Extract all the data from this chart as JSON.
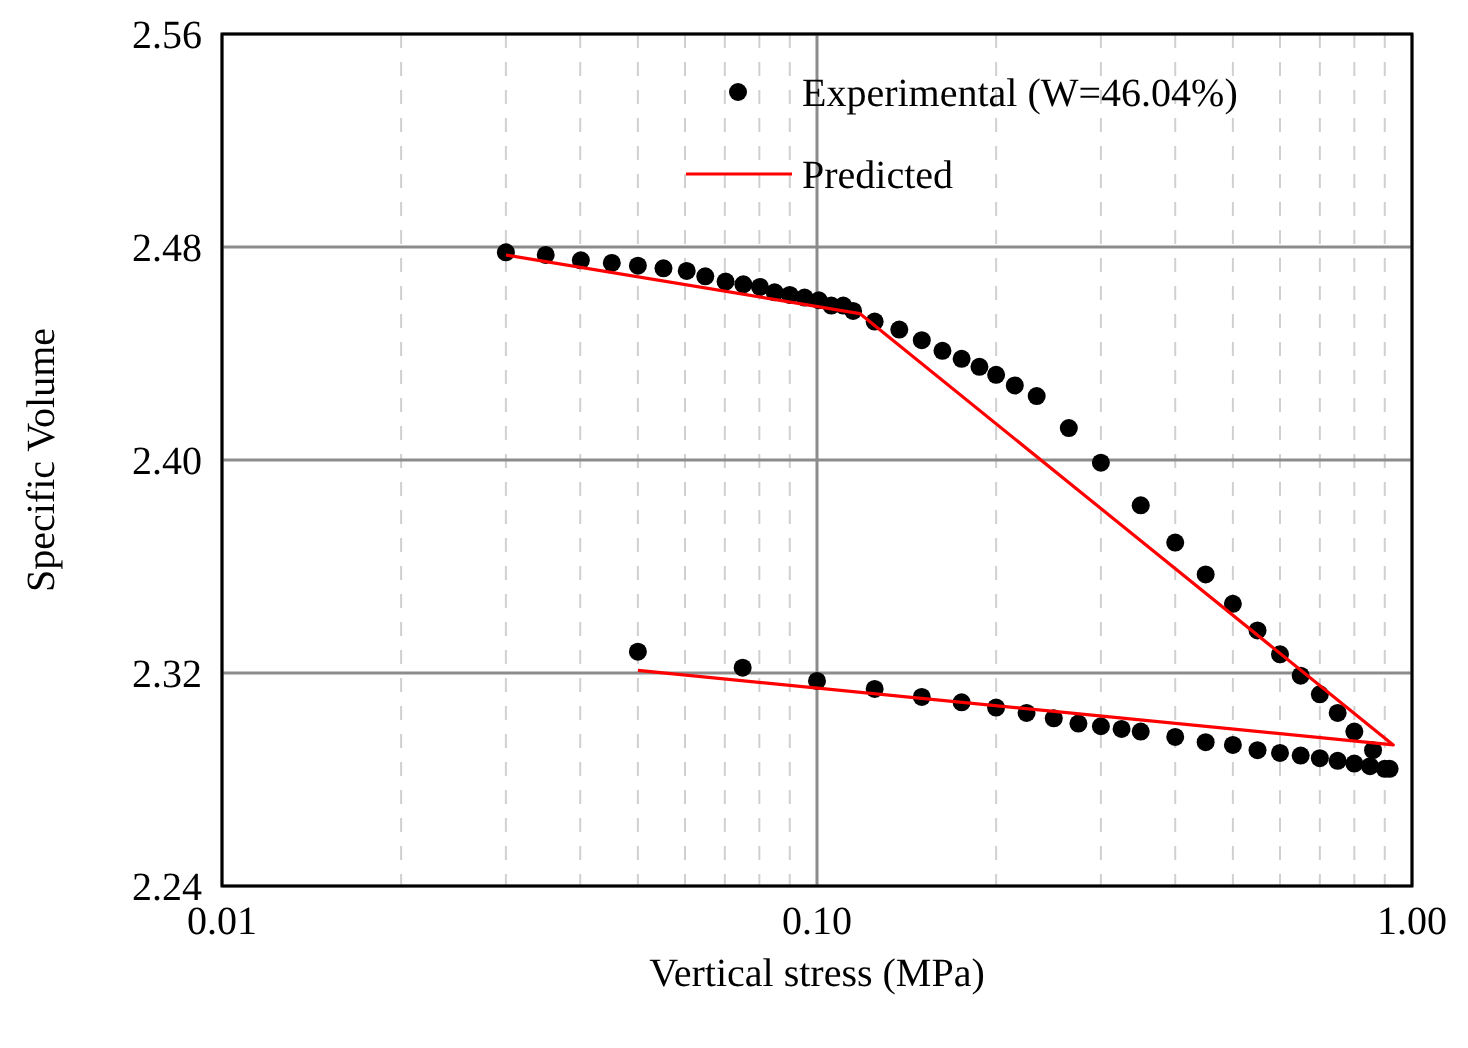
{
  "chart_data": {
    "type": "scatter",
    "xlabel": "Vertical stress (MPa)",
    "ylabel": "Specific Volume",
    "log": "x",
    "grid": true,
    "legend": "top right",
    "xlim": [
      0.01,
      1
    ],
    "ylim": [
      2.24,
      2.56
    ],
    "xticks": [
      {
        "value": 0.01,
        "label": "0.01"
      },
      {
        "value": 0.1,
        "label": "0.10"
      },
      {
        "value": 1,
        "label": "1.00"
      }
    ],
    "yticks": [
      {
        "value": 2.24,
        "label": "2.24"
      },
      {
        "value": 2.32,
        "label": "2.32"
      },
      {
        "value": 2.4,
        "label": "2.40"
      },
      {
        "value": 2.48,
        "label": "2.48"
      },
      {
        "value": 2.56,
        "label": "2.56"
      }
    ],
    "series": [
      {
        "name": "Experimental (W=46.04%)",
        "marker": "circle",
        "color": "#000000",
        "x": [
          0.03,
          0.035,
          0.0401,
          0.0452,
          0.05,
          0.0552,
          0.0604,
          0.0649,
          0.0702,
          0.0752,
          0.0802,
          0.0849,
          0.09,
          0.0953,
          0.1007,
          0.1057,
          0.1107,
          0.115,
          0.125,
          0.1375,
          0.15,
          0.1625,
          0.175,
          0.1875,
          0.2,
          0.215,
          0.234,
          0.265,
          0.3,
          0.35,
          0.4,
          0.45,
          0.5,
          0.55,
          0.6,
          0.65,
          0.7,
          0.75,
          0.8,
          0.86,
          0.917,
          0.9,
          0.85,
          0.8,
          0.75,
          0.7,
          0.65,
          0.6,
          0.55,
          0.5,
          0.45,
          0.4,
          0.35,
          0.325,
          0.3,
          0.275,
          0.25,
          0.225,
          0.2,
          0.175,
          0.15,
          0.125,
          0.1,
          0.075,
          0.05
        ],
        "values": [
          2.478,
          2.477,
          2.475,
          2.474,
          2.473,
          2.472,
          2.471,
          2.469,
          2.467,
          2.466,
          2.465,
          2.463,
          2.462,
          2.461,
          2.46,
          2.458,
          2.458,
          2.456,
          2.452,
          2.449,
          2.445,
          2.441,
          2.438,
          2.435,
          2.432,
          2.428,
          2.424,
          2.412,
          2.399,
          2.383,
          2.369,
          2.357,
          2.346,
          2.336,
          2.327,
          2.319,
          2.312,
          2.305,
          2.298,
          2.291,
          2.284,
          2.284,
          2.285,
          2.286,
          2.287,
          2.288,
          2.289,
          2.29,
          2.291,
          2.293,
          2.294,
          2.296,
          2.298,
          2.299,
          2.3,
          2.301,
          2.303,
          2.305,
          2.307,
          2.309,
          2.311,
          2.314,
          2.317,
          2.322,
          2.328
        ]
      },
      {
        "name": "Predicted",
        "type": "line",
        "line_style": "solid",
        "color": "#ff0000",
        "x": [
          0.03,
          0.118,
          0.93,
          0.05
        ],
        "values": [
          2.477,
          2.455,
          2.293,
          2.321
        ]
      }
    ]
  }
}
